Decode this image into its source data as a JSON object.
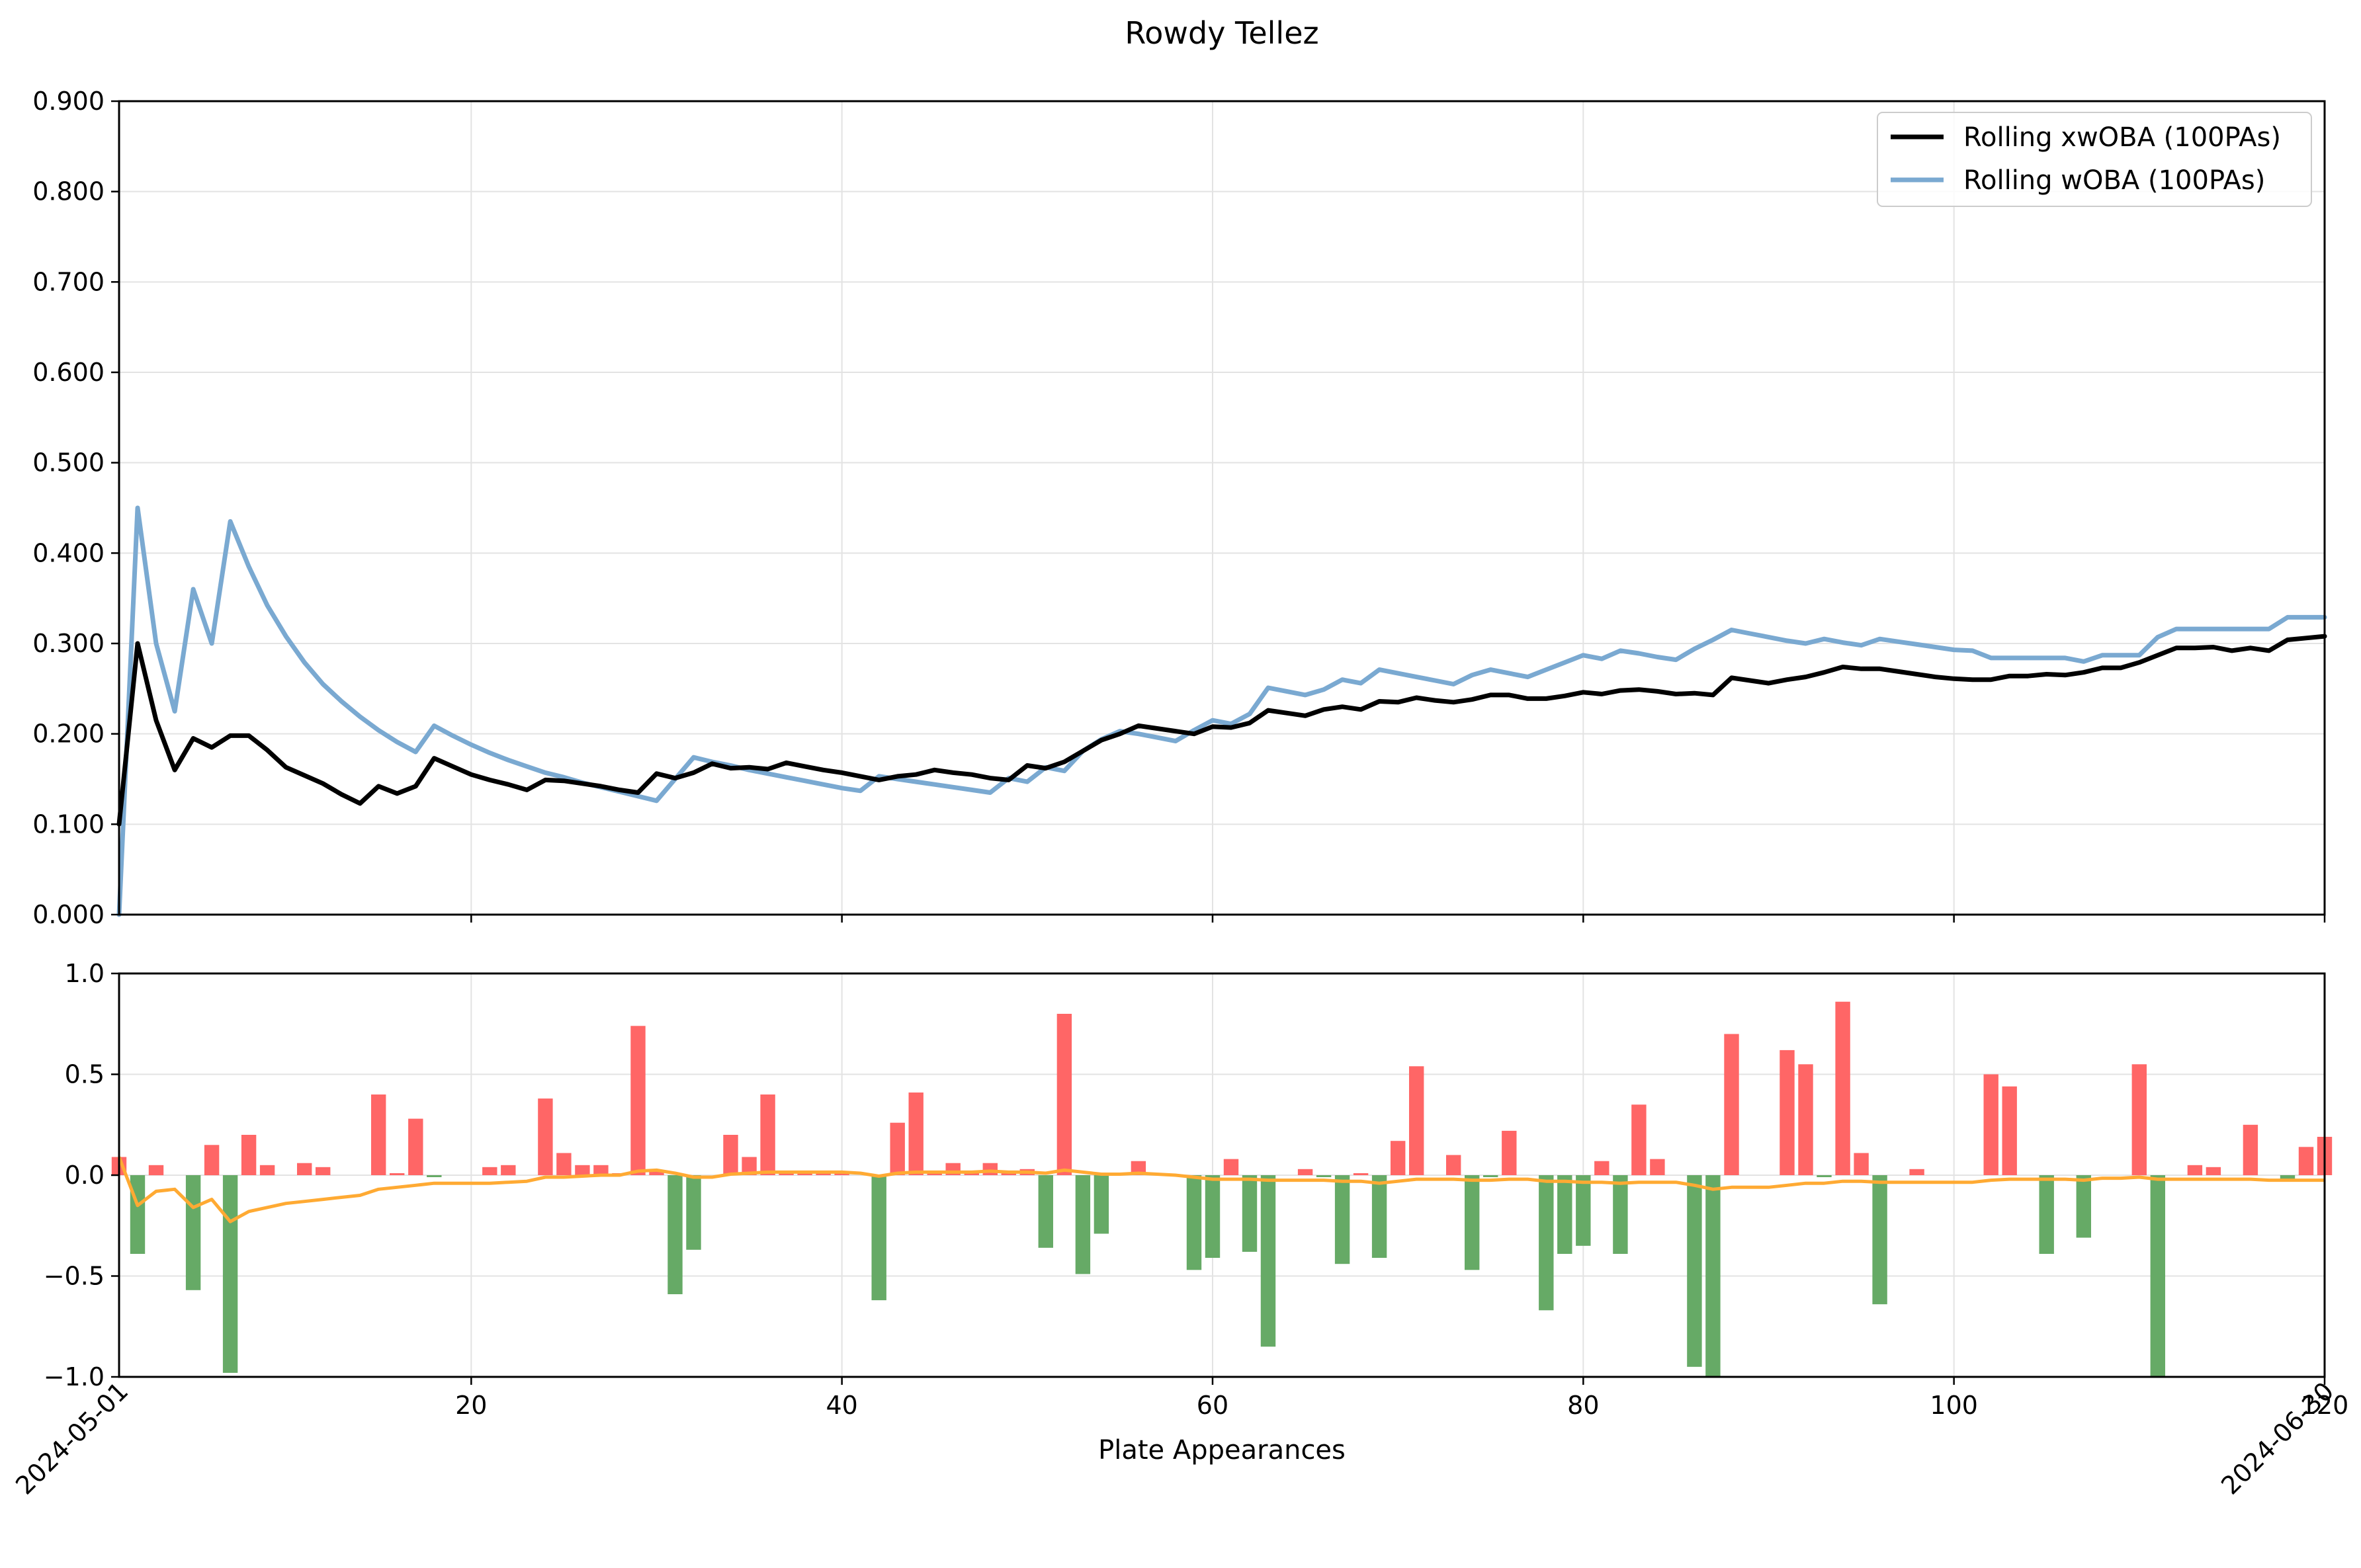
{
  "chart_data": {
    "type": "line",
    "title": "Rowdy Tellez",
    "xlabel": "Plate Appearances",
    "xlim": [
      1,
      120
    ],
    "x_ticks": [
      20,
      40,
      60,
      80,
      100,
      120
    ],
    "date_labels": [
      {
        "x": 1,
        "label": "2024-05-01"
      },
      {
        "x": 120,
        "label": "2024-06-30"
      }
    ],
    "top_panel": {
      "ylim": [
        0,
        0.9
      ],
      "y_ticks": [
        "0.000",
        "0.100",
        "0.200",
        "0.300",
        "0.400",
        "0.500",
        "0.600",
        "0.700",
        "0.800",
        "0.900"
      ],
      "grid": true,
      "legend_position": "top-right",
      "series": [
        {
          "name": "Rolling xwOBA (100PAs)",
          "color": "#000000",
          "values": [
            0.1,
            0.3,
            0.215,
            0.16,
            0.195,
            0.185,
            0.198,
            0.198,
            0.182,
            0.163,
            0.154,
            0.145,
            0.133,
            0.123,
            0.142,
            0.134,
            0.142,
            0.173,
            0.164,
            0.155,
            0.149,
            0.144,
            0.138,
            0.149,
            0.148,
            0.145,
            0.142,
            0.138,
            0.135,
            0.156,
            0.151,
            0.157,
            0.167,
            0.162,
            0.163,
            0.161,
            0.168,
            0.164,
            0.16,
            0.157,
            0.153,
            0.149,
            0.153,
            0.155,
            0.16,
            0.157,
            0.155,
            0.151,
            0.149,
            0.165,
            0.162,
            0.169,
            0.181,
            0.193,
            0.2,
            0.209,
            0.206,
            0.203,
            0.2,
            0.208,
            0.207,
            0.212,
            0.226,
            0.223,
            0.22,
            0.227,
            0.23,
            0.227,
            0.236,
            0.235,
            0.24,
            0.237,
            0.235,
            0.238,
            0.243,
            0.243,
            0.239,
            0.239,
            0.242,
            0.246,
            0.244,
            0.248,
            0.249,
            0.247,
            0.244,
            0.245,
            0.243,
            0.262,
            0.259,
            0.256,
            0.26,
            0.263,
            0.268,
            0.274,
            0.272,
            0.272,
            0.269,
            0.266,
            0.263,
            0.261,
            0.26,
            0.26,
            0.264,
            0.264,
            0.266,
            0.265,
            0.268,
            0.273,
            0.273,
            0.279,
            0.287,
            0.295,
            0.295,
            0.296,
            0.292,
            0.295,
            0.292,
            0.304,
            0.306,
            0.308
          ]
        },
        {
          "name": "Rolling wOBA (100PAs)",
          "color": "#7aa9d1",
          "values": [
            0.0,
            0.45,
            0.3,
            0.225,
            0.36,
            0.3,
            0.435,
            0.385,
            0.342,
            0.308,
            0.279,
            0.255,
            0.236,
            0.219,
            0.204,
            0.191,
            0.18,
            0.209,
            0.198,
            0.188,
            0.179,
            0.171,
            0.164,
            0.157,
            0.152,
            0.146,
            0.141,
            0.136,
            0.131,
            0.126,
            0.15,
            0.174,
            0.169,
            0.165,
            0.16,
            0.156,
            0.152,
            0.148,
            0.144,
            0.14,
            0.137,
            0.153,
            0.15,
            0.147,
            0.144,
            0.141,
            0.138,
            0.135,
            0.151,
            0.147,
            0.163,
            0.159,
            0.181,
            0.194,
            0.203,
            0.2,
            0.196,
            0.192,
            0.204,
            0.215,
            0.211,
            0.222,
            0.251,
            0.247,
            0.243,
            0.249,
            0.26,
            0.256,
            0.271,
            0.267,
            0.263,
            0.259,
            0.255,
            0.265,
            0.271,
            0.267,
            0.263,
            0.271,
            0.279,
            0.287,
            0.283,
            0.292,
            0.289,
            0.285,
            0.282,
            0.294,
            0.304,
            0.315,
            0.311,
            0.307,
            0.303,
            0.3,
            0.305,
            0.301,
            0.298,
            0.305,
            0.302,
            0.299,
            0.296,
            0.293,
            0.292,
            0.284,
            0.284,
            0.284,
            0.284,
            0.284,
            0.28,
            0.287,
            0.287,
            0.287,
            0.307,
            0.316,
            0.316,
            0.316,
            0.316,
            0.316,
            0.316,
            0.329,
            0.329,
            0.329
          ]
        }
      ]
    },
    "bottom_panel": {
      "ylim": [
        -1.0,
        1.0
      ],
      "y_ticks": [
        "1.0",
        "0.5",
        "0.0",
        "−0.5",
        "−1.0"
      ],
      "grid": true,
      "positive_color": "#ff6666",
      "negative_color": "#66aa66",
      "line_color": "#ffaa33",
      "bars": [
        0.09,
        -0.39,
        0.05,
        0,
        -0.57,
        0.15,
        -0.98,
        0.2,
        0.05,
        0,
        0.06,
        0.04,
        0,
        0,
        0.4,
        0.01,
        0.28,
        -0.01,
        0,
        0,
        0.04,
        0.05,
        0,
        0.38,
        0.11,
        0.05,
        0.05,
        0.01,
        0.74,
        0.02,
        -0.59,
        -0.37,
        0,
        0.2,
        0.09,
        0.4,
        0.01,
        0.02,
        0.02,
        0.01,
        0,
        -0.62,
        0.26,
        0.41,
        0.01,
        0.06,
        0.02,
        0.06,
        0.01,
        0.03,
        -0.36,
        0.8,
        -0.49,
        -0.29,
        0.01,
        0.07,
        0.01,
        0,
        -0.47,
        -0.41,
        0.08,
        -0.38,
        -0.85,
        0,
        0.03,
        -0.01,
        -0.44,
        0.01,
        -0.41,
        0.17,
        0.54,
        0,
        0.1,
        -0.47,
        -0.01,
        0.22,
        0,
        -0.67,
        -0.39,
        -0.35,
        0.07,
        -0.39,
        0.35,
        0.08,
        0,
        -0.95,
        -1.0,
        0.7,
        0,
        0,
        0.62,
        0.55,
        -0.01,
        0.86,
        0.11,
        -0.64,
        0,
        0.03,
        0,
        0,
        0,
        0.5,
        0.44,
        0,
        -0.39,
        0,
        -0.31,
        0,
        0,
        0.55,
        -1.0,
        0,
        0.05,
        0.04,
        0,
        0.25,
        0,
        -0.02,
        0.14,
        0.19
      ],
      "line": [
        0.09,
        -0.15,
        -0.08,
        -0.07,
        -0.16,
        -0.12,
        -0.23,
        -0.18,
        -0.16,
        -0.14,
        -0.13,
        -0.12,
        -0.11,
        -0.1,
        -0.07,
        -0.06,
        -0.05,
        -0.04,
        -0.04,
        -0.04,
        -0.04,
        -0.035,
        -0.03,
        -0.01,
        -0.01,
        -0.005,
        0,
        0,
        0.02,
        0.025,
        0.01,
        -0.01,
        -0.01,
        0.005,
        0.01,
        0.015,
        0.015,
        0.015,
        0.015,
        0.015,
        0.01,
        -0.005,
        0.01,
        0.015,
        0.015,
        0.015,
        0.015,
        0.02,
        0.015,
        0.015,
        0.01,
        0.025,
        0.015,
        0.005,
        0.005,
        0.01,
        0.005,
        0,
        -0.01,
        -0.02,
        -0.02,
        -0.02,
        -0.025,
        -0.025,
        -0.025,
        -0.025,
        -0.03,
        -0.03,
        -0.04,
        -0.03,
        -0.02,
        -0.02,
        -0.02,
        -0.025,
        -0.025,
        -0.02,
        -0.02,
        -0.03,
        -0.03,
        -0.035,
        -0.035,
        -0.04,
        -0.035,
        -0.035,
        -0.035,
        -0.05,
        -0.07,
        -0.06,
        -0.06,
        -0.06,
        -0.05,
        -0.04,
        -0.04,
        -0.03,
        -0.03,
        -0.035,
        -0.035,
        -0.035,
        -0.035,
        -0.035,
        -0.035,
        -0.025,
        -0.02,
        -0.02,
        -0.02,
        -0.02,
        -0.025,
        -0.015,
        -0.015,
        -0.01,
        -0.02,
        -0.02,
        -0.02,
        -0.02,
        -0.02,
        -0.02,
        -0.025,
        -0.025,
        -0.025,
        -0.025
      ]
    }
  }
}
